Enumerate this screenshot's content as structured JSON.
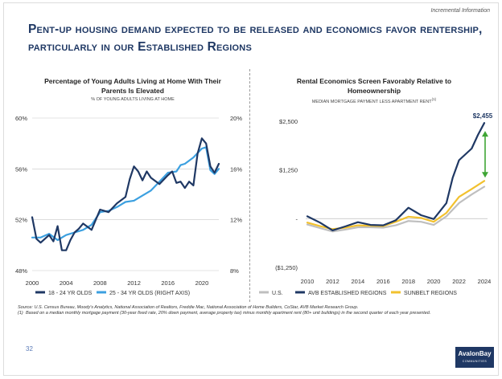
{
  "header": {
    "tag": "Incremental Information",
    "title": "Pent-up housing demand expected to be released and economics favor rentership, particularly in our Established Regions"
  },
  "colors": {
    "navy": "#1f3864",
    "light_blue": "#3ca0e0",
    "gray": "#bfbfbf",
    "yellow": "#f2c12e",
    "green": "#3fa535",
    "grid": "#c8c8c8"
  },
  "chart_data": [
    {
      "type": "line",
      "title": "Percentage of Young Adults Living at Home With Their Parents Is Elevated",
      "subtitle": "% of young adults living at home",
      "xlim": [
        2000,
        2022
      ],
      "x_ticks": [
        2000,
        2004,
        2008,
        2012,
        2016,
        2020
      ],
      "x_tick_labels": [
        "2000",
        "2004",
        "2008",
        "2012",
        "2016",
        "2020"
      ],
      "left_axis": {
        "ylim": [
          48,
          60
        ],
        "ticks": [
          48,
          52,
          56,
          60
        ],
        "tick_labels": [
          "48%",
          "52%",
          "56%",
          "60%"
        ]
      },
      "right_axis": {
        "ylim": [
          8,
          20
        ],
        "ticks": [
          8,
          12,
          16,
          20
        ],
        "tick_labels": [
          "8%",
          "12%",
          "16%",
          "20%"
        ]
      },
      "series": [
        {
          "name": "18 - 24 YR OLDS",
          "axis": "left",
          "color": "#1f3864",
          "x": [
            2000,
            2000.5,
            2001,
            2002,
            2002.5,
            2003,
            2003.5,
            2004,
            2004.5,
            2005,
            2005.5,
            2006,
            2007,
            2008,
            2009,
            2010,
            2011,
            2011.5,
            2012,
            2012.5,
            2013,
            2013.5,
            2014,
            2015,
            2016,
            2016.5,
            2017,
            2017.5,
            2018,
            2018.5,
            2019,
            2019.5,
            2020,
            2020.5,
            2021,
            2021.5,
            2022
          ],
          "y": [
            52.2,
            50.5,
            50.2,
            50.8,
            50.3,
            51.5,
            49.6,
            49.6,
            50.4,
            51.0,
            51.3,
            51.7,
            51.2,
            52.8,
            52.6,
            53.3,
            53.8,
            55.2,
            56.2,
            55.8,
            55.1,
            55.8,
            55.3,
            54.8,
            55.5,
            55.8,
            54.9,
            55.0,
            54.5,
            55.0,
            54.7,
            57.2,
            58.4,
            58.0,
            56.2,
            55.7,
            56.4
          ]
        },
        {
          "name": "25 - 34 YR OLDS (RIGHT AXIS)",
          "axis": "right",
          "color": "#3ca0e0",
          "x": [
            2000,
            2001,
            2002,
            2003,
            2004,
            2005,
            2006,
            2007,
            2008,
            2009,
            2010,
            2011,
            2012,
            2013,
            2014,
            2015,
            2016,
            2017,
            2017.5,
            2018,
            2019,
            2020,
            2020.5,
            2021,
            2021.5,
            2022
          ],
          "y": [
            10.6,
            10.6,
            10.9,
            10.4,
            10.8,
            11.0,
            11.2,
            11.6,
            12.6,
            12.7,
            13.0,
            13.4,
            13.5,
            13.9,
            14.3,
            15.0,
            15.7,
            15.8,
            16.3,
            16.4,
            16.9,
            17.6,
            17.7,
            15.9,
            15.6,
            16.0
          ]
        }
      ],
      "legend_position": "bottom"
    },
    {
      "type": "line",
      "title": "Rental Economics Screen Favorably Relative to Homeownership",
      "subtitle": "Median mortgage payment less apartment rent",
      "subtitle_footnote": "(1)",
      "xlim": [
        2010,
        2024
      ],
      "x_ticks": [
        2010,
        2012,
        2014,
        2016,
        2018,
        2020,
        2022,
        2024
      ],
      "x_tick_labels": [
        "2010",
        "2012",
        "2014",
        "2016",
        "2018",
        "2020",
        "2022",
        "2024"
      ],
      "ylim": [
        -1250,
        2500
      ],
      "y_ticks": [
        -1250,
        0,
        1250,
        2500
      ],
      "y_tick_labels": [
        "($1,250)",
        "-",
        "$1,250",
        "$2,500"
      ],
      "annotation": {
        "text": "$2,455",
        "value": 2455,
        "x": 2024
      },
      "series": [
        {
          "name": "U.S.",
          "color": "#bfbfbf",
          "x": [
            2010,
            2011,
            2012,
            2013,
            2014,
            2015,
            2016,
            2017,
            2018,
            2019,
            2020,
            2021,
            2022,
            2023,
            2024
          ],
          "y": [
            -150,
            -240,
            -330,
            -280,
            -220,
            -220,
            -230,
            -170,
            -60,
            -80,
            -160,
            60,
            400,
            620,
            820
          ]
        },
        {
          "name": "AVB ESTABLISHED REGIONS",
          "color": "#1f3864",
          "x": [
            2010,
            2011,
            2012,
            2013,
            2014,
            2015,
            2016,
            2017,
            2018,
            2019,
            2020,
            2021,
            2021.5,
            2022,
            2023,
            2023.5,
            2024
          ],
          "y": [
            60,
            -100,
            -300,
            -200,
            -90,
            -160,
            -170,
            -40,
            280,
            90,
            -10,
            400,
            1050,
            1500,
            1800,
            2150,
            2455
          ]
        },
        {
          "name": "SUNBELT REGIONS",
          "color": "#f2c12e",
          "x": [
            2010,
            2011,
            2012,
            2013,
            2014,
            2015,
            2016,
            2017,
            2018,
            2019,
            2020,
            2021,
            2022,
            2023,
            2024
          ],
          "y": [
            -100,
            -190,
            -270,
            -230,
            -170,
            -180,
            -190,
            -80,
            50,
            20,
            -80,
            150,
            560,
            760,
            970
          ]
        }
      ],
      "legend_position": "bottom"
    }
  ],
  "footnotes": {
    "source": "Source: U.S. Census Bureau, Moody's Analytics, National Association of Realtors, Freddie Mac, National Association of Home Builders, CoStar, AVB Market Research Group.",
    "note_number": "(1)",
    "note_text": "Based on a median monthly mortgage payment (30-year fixed rate, 20% down payment, average property tax) minus monthly apartment rent (80+ unit buildings) in the second quarter of each year presented."
  },
  "page_number": "32",
  "logo": {
    "brand": "AvalonBay",
    "sub": "COMMUNITIES"
  }
}
